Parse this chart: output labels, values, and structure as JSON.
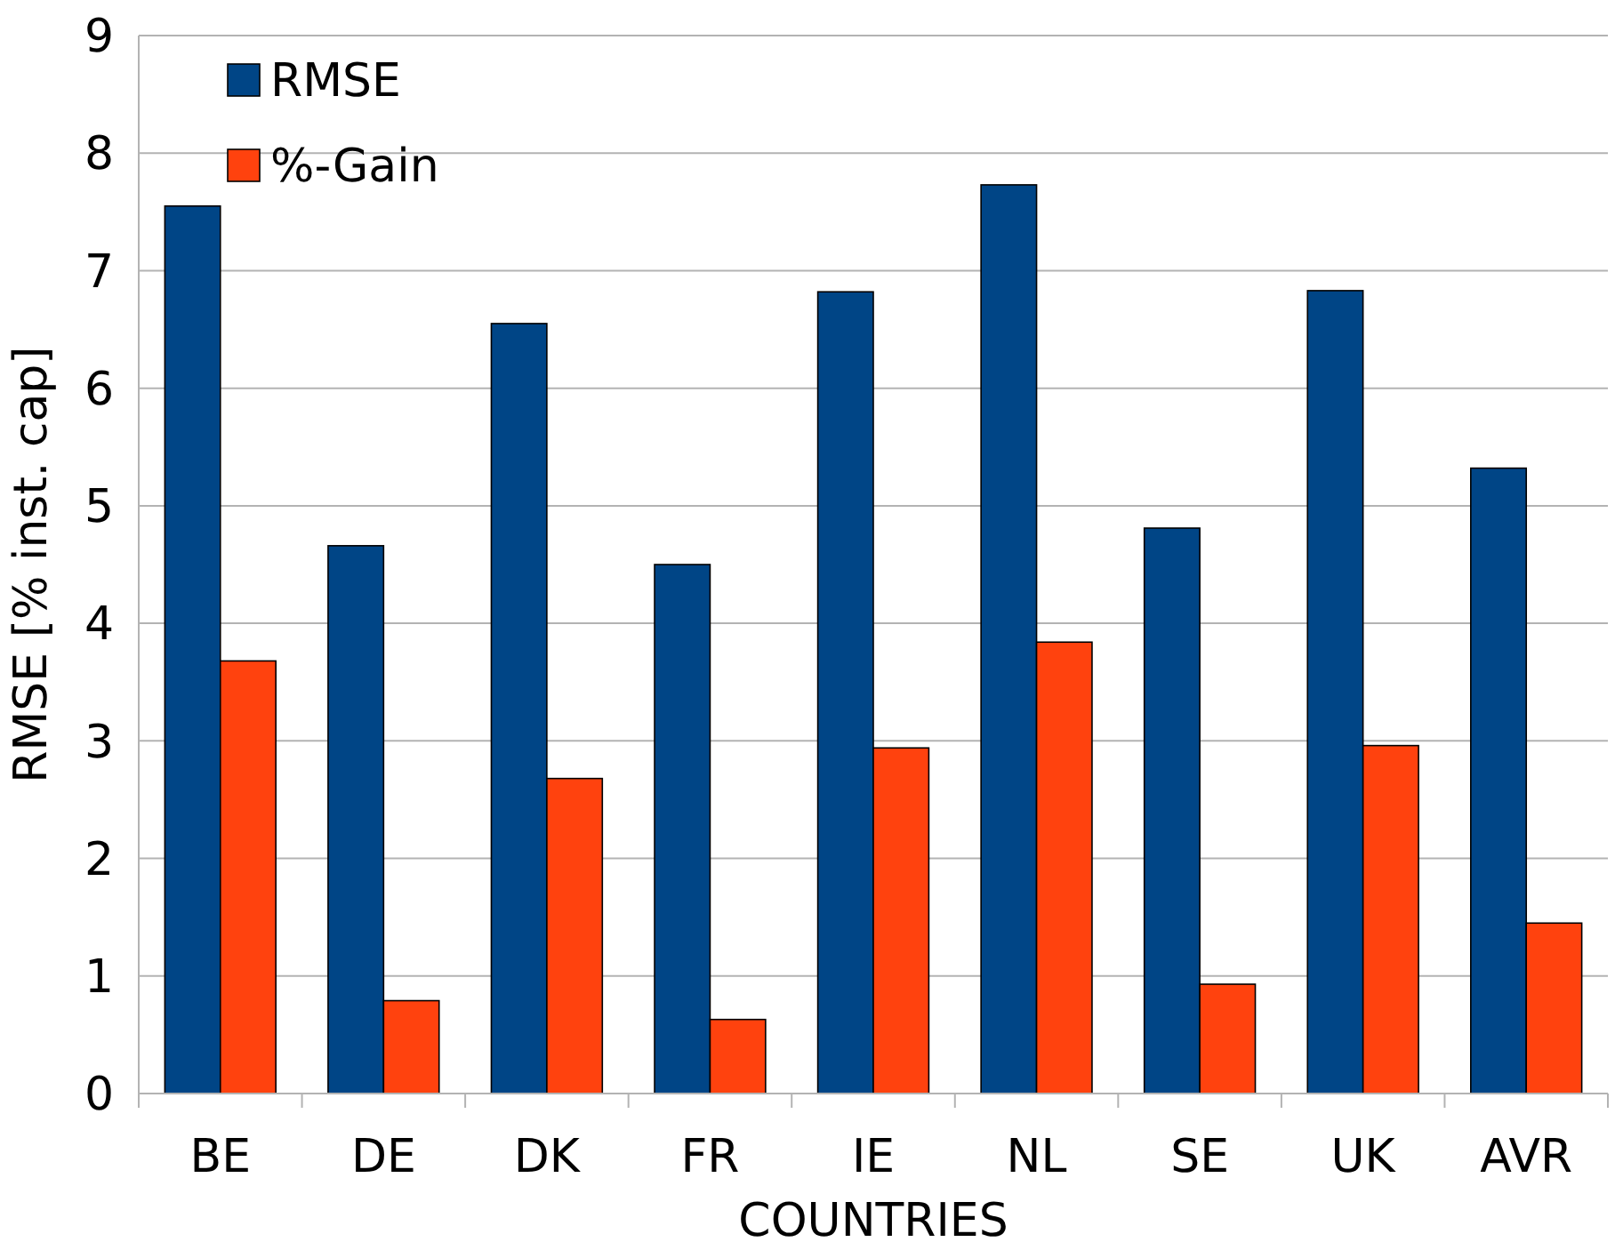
{
  "chart_data": {
    "type": "bar",
    "xlabel": "COUNTRIES",
    "ylabel": "RMSE [% inst. cap]",
    "categories": [
      "BE",
      "DE",
      "DK",
      "FR",
      "IE",
      "NL",
      "SE",
      "UK",
      "AVR"
    ],
    "series": [
      {
        "name": "RMSE",
        "color": "#004586",
        "values": [
          7.55,
          4.66,
          6.55,
          4.5,
          6.82,
          7.73,
          4.81,
          6.83,
          5.32
        ]
      },
      {
        "name": "%-Gain",
        "color": "#ff420e",
        "values": [
          3.68,
          0.79,
          2.68,
          0.63,
          2.94,
          3.84,
          0.93,
          2.96,
          1.45
        ]
      }
    ],
    "ylim": [
      0,
      9
    ],
    "yticks": [
      0,
      1,
      2,
      3,
      4,
      5,
      6,
      7,
      8,
      9
    ],
    "grid": "y",
    "legend": "top left"
  }
}
